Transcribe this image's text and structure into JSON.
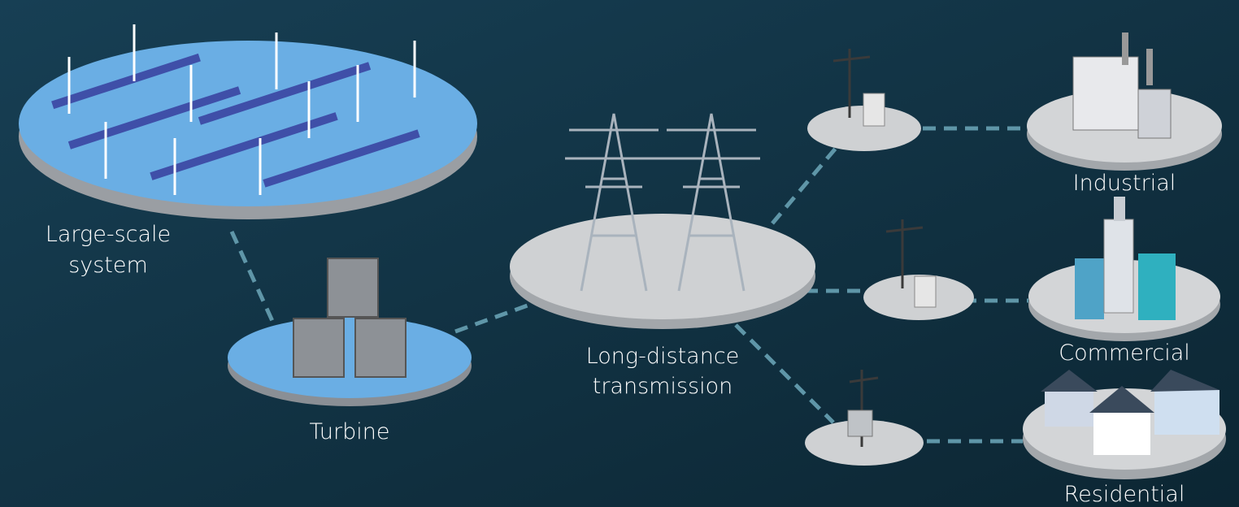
{
  "nodes": [
    {
      "label": [
        "Large-scale",
        "system"
      ]
    },
    {
      "label": [
        "Turbine"
      ]
    },
    {
      "label": [
        "Long-distance",
        "transmission"
      ]
    },
    {
      "label": [
        "Industrial"
      ]
    },
    {
      "label": [
        "Commercial"
      ]
    },
    {
      "label": [
        "Residential"
      ]
    }
  ]
}
